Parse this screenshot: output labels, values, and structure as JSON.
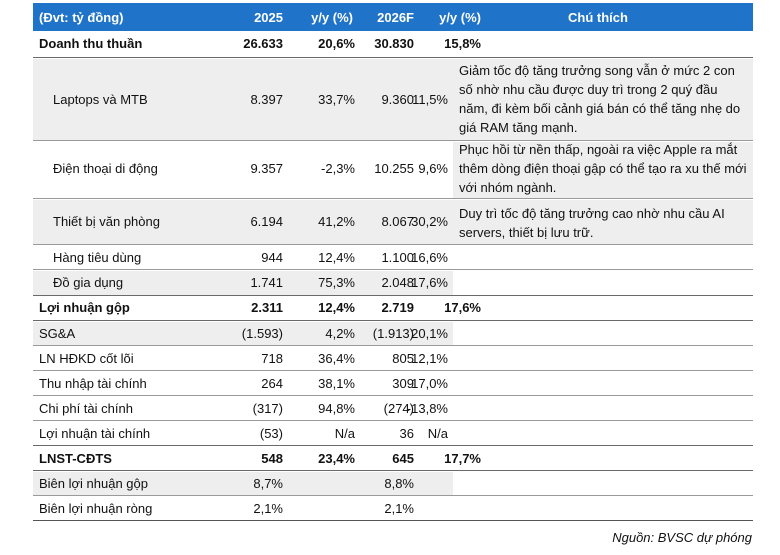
{
  "header": {
    "unit": "(Đvt: tỷ đồng)",
    "y2025": "2025",
    "yoy1": "y/y (%)",
    "y2026": "2026F",
    "yoy2": "y/y (%)",
    "note": "Chú thích"
  },
  "rows": [
    {
      "label": "Doanh thu thuần",
      "v2025": "26.633",
      "y1": "20,6%",
      "v2026": "30.830",
      "y2": "15,8%"
    },
    {
      "label": "Laptops và MTB",
      "v2025": "8.397",
      "y1": "33,7%",
      "v2026": "9.360",
      "y2": "11,5%",
      "note": "Giảm tốc độ tăng trưởng song vẫn ở mức 2 con số nhờ nhu cầu được duy trì trong 2 quý đầu năm, đi kèm bối cảnh giá bán có thể tăng nhẹ do giá RAM tăng mạnh."
    },
    {
      "label": "Điện thoại di động",
      "v2025": "9.357",
      "y1": "-2,3%",
      "v2026": "10.255",
      "y2": "9,6%",
      "note": "Phục hồi từ nền thấp, ngoài ra việc Apple ra mắt thêm dòng điện thoại gập có thể tạo ra xu thế mới với nhóm ngành."
    },
    {
      "label": "Thiết bị văn phòng",
      "v2025": "6.194",
      "y1": "41,2%",
      "v2026": "8.067",
      "y2": "30,2%",
      "note": "Duy trì tốc độ tăng trưởng cao nhờ nhu cầu AI servers, thiết bị lưu trữ."
    },
    {
      "label": "Hàng tiêu dùng",
      "v2025": "944",
      "y1": "12,4%",
      "v2026": "1.100",
      "y2": "16,6%"
    },
    {
      "label": "Đồ gia dụng",
      "v2025": "1.741",
      "y1": "75,3%",
      "v2026": "2.048",
      "y2": "17,6%"
    },
    {
      "label": "Lợi nhuận gộp",
      "v2025": "2.311",
      "y1": "12,4%",
      "v2026": "2.719",
      "y2": "17,6%"
    },
    {
      "label": "SG&A",
      "v2025": "(1.593)",
      "y1": "4,2%",
      "v2026": "(1.913)",
      "y2": "20,1%"
    },
    {
      "label": "LN HĐKD cốt lõi",
      "v2025": "718",
      "y1": "36,4%",
      "v2026": "805",
      "y2": "12,1%"
    },
    {
      "label": "Thu nhập tài chính",
      "v2025": "264",
      "y1": "38,1%",
      "v2026": "309",
      "y2": "17,0%"
    },
    {
      "label": "Chi phí tài chính",
      "v2025": "(317)",
      "y1": "94,8%",
      "v2026": "(274)",
      "y2": "-13,8%"
    },
    {
      "label": "Lợi nhuận tài chính",
      "v2025": "(53)",
      "y1": "N/a",
      "v2026": "36",
      "y2": "N/a"
    },
    {
      "label": "LNST-CĐTS",
      "v2025": "548",
      "y1": "23,4%",
      "v2026": "645",
      "y2": "17,7%"
    },
    {
      "label": "Biên lợi nhuận gộp",
      "v2025": "8,7%",
      "y1": "",
      "v2026": "8,8%",
      "y2": ""
    },
    {
      "label": "Biên lợi nhuận ròng",
      "v2025": "2,1%",
      "y1": "",
      "v2026": "2,1%",
      "y2": ""
    }
  ],
  "source": "Nguồn: BVSC dự phóng"
}
